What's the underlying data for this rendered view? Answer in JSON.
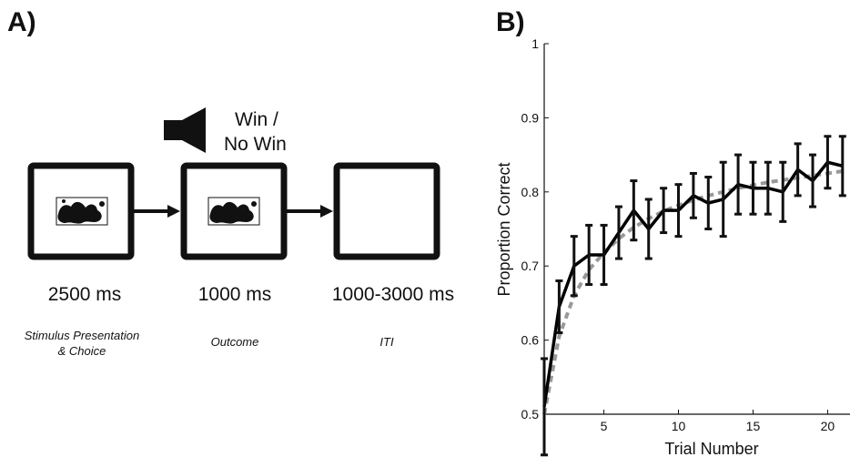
{
  "panel_a": {
    "label": "A)",
    "speaker_text": [
      "Win /",
      "No Win"
    ],
    "durations": [
      "2500 ms",
      "1000 ms",
      "1000-3000 ms"
    ],
    "captions": [
      [
        "Stimulus Presentation",
        "& Choice"
      ],
      [
        "Outcome"
      ],
      [
        "ITI"
      ]
    ]
  },
  "panel_b": {
    "label": "B)"
  },
  "chart_data": {
    "type": "line",
    "title": "",
    "xlabel": "Trial Number",
    "ylabel": "Proportion Correct",
    "xlim": [
      1,
      21.5
    ],
    "ylim": [
      0.5,
      1
    ],
    "xticks": [
      5,
      10,
      15,
      20
    ],
    "yticks": [
      0.5,
      0.6,
      0.7,
      0.8,
      0.9,
      1
    ],
    "ytick_labels": [
      "0.5",
      "0.6",
      "0.7",
      "0.8",
      "0.9",
      "1"
    ],
    "series": [
      {
        "style": "solid",
        "color": "#000000",
        "x": [
          1,
          2,
          3,
          4,
          5,
          6,
          7,
          8,
          9,
          10,
          11,
          12,
          13,
          14,
          15,
          16,
          17,
          18,
          19,
          20,
          21
        ],
        "y": [
          0.51,
          0.645,
          0.7,
          0.715,
          0.715,
          0.745,
          0.775,
          0.75,
          0.775,
          0.775,
          0.795,
          0.785,
          0.79,
          0.81,
          0.805,
          0.805,
          0.8,
          0.83,
          0.815,
          0.84,
          0.835
        ],
        "err": [
          0.065,
          0.035,
          0.04,
          0.04,
          0.04,
          0.035,
          0.04,
          0.04,
          0.03,
          0.035,
          0.03,
          0.035,
          0.05,
          0.04,
          0.035,
          0.035,
          0.04,
          0.035,
          0.035,
          0.035,
          0.04
        ]
      },
      {
        "style": "dashed",
        "color": "#999999",
        "x": [
          1,
          2,
          3,
          4,
          5,
          6,
          7,
          8,
          9,
          10,
          11,
          12,
          13,
          14,
          15,
          16,
          17,
          18,
          19,
          20,
          21
        ],
        "y": [
          0.5,
          0.605,
          0.66,
          0.695,
          0.718,
          0.737,
          0.752,
          0.764,
          0.774,
          0.782,
          0.789,
          0.795,
          0.8,
          0.805,
          0.809,
          0.813,
          0.816,
          0.819,
          0.822,
          0.825,
          0.828
        ]
      }
    ]
  }
}
